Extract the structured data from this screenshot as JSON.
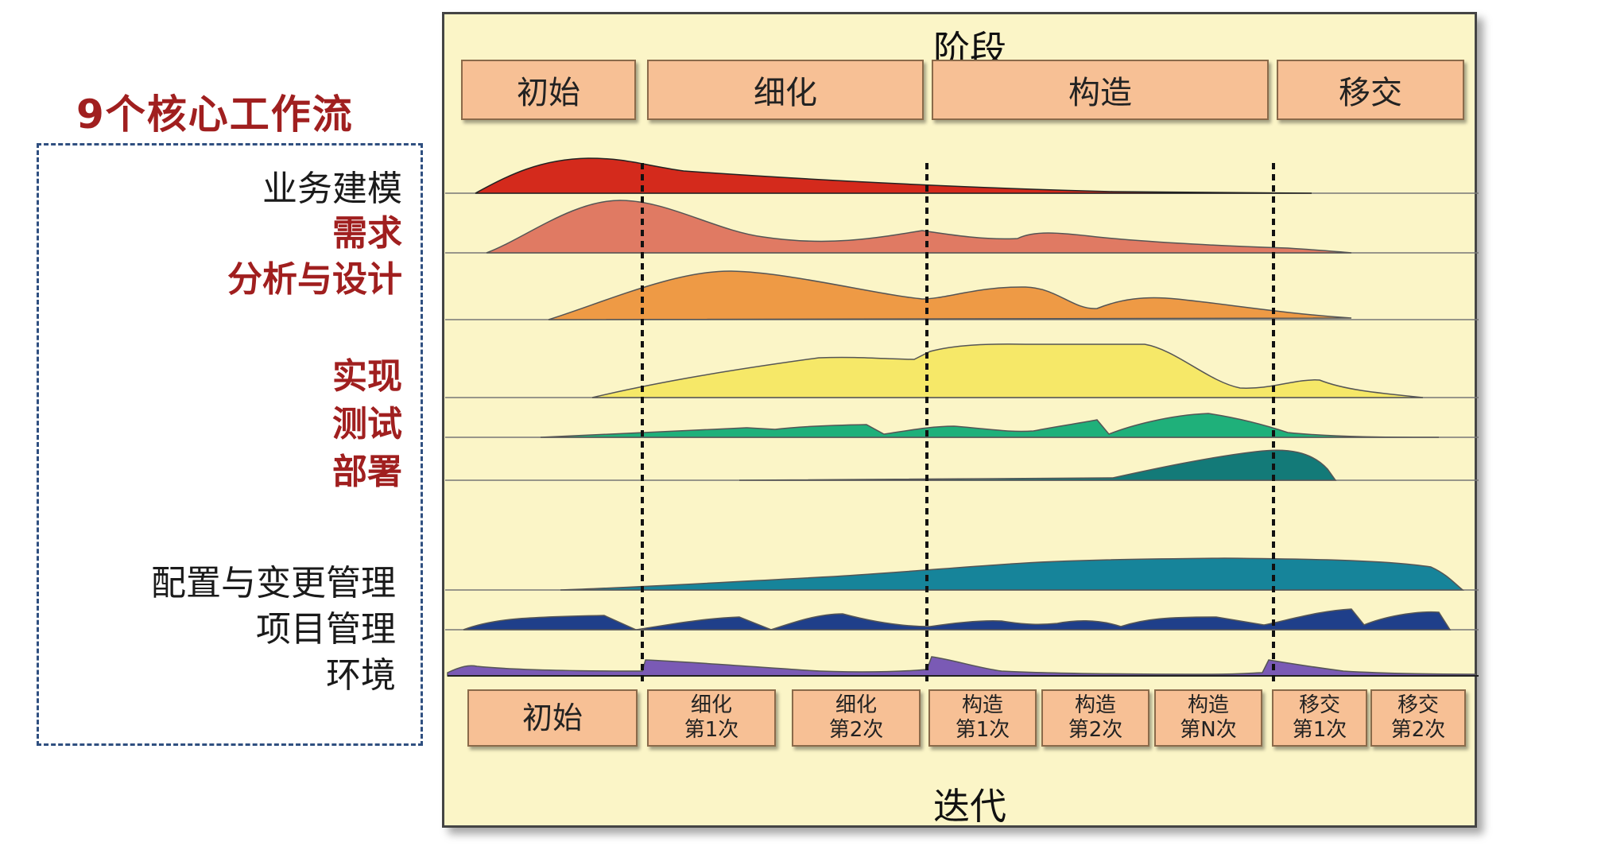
{
  "title": "9个核心工作流",
  "workflows": [
    "业务建模",
    "需求",
    "分析与设计",
    "实现",
    "测试",
    "部署",
    "配置与变更管理",
    "项目管理",
    "环境"
  ],
  "panel": {
    "top_caption": "阶段",
    "bottom_caption": "迭代"
  },
  "phases": [
    "初始",
    "细化",
    "构造",
    "移交"
  ],
  "iterations": [
    "初始",
    "细化\n第1次",
    "细化\n第2次",
    "构造\n第1次",
    "构造\n第2次",
    "构造\n第N次",
    "移交\n第1次",
    "移交\n第2次"
  ],
  "colors": {
    "title_red": "#a01f1f",
    "box_fill": "#f7c095",
    "panel_bg": "#fbf5c7",
    "workflow_fills": [
      "#d42a1c",
      "#e07a63",
      "#ee9a45",
      "#f6e868",
      "#1fb07a",
      "#137a78",
      "#16849a",
      "#1f3f8a",
      "#7a5ab5"
    ]
  }
}
